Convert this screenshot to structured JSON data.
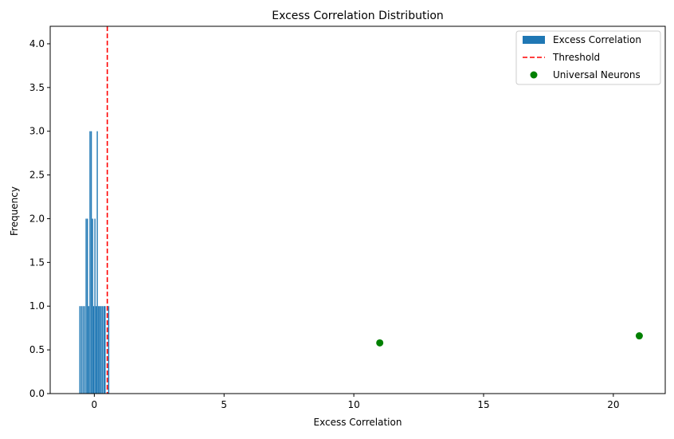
{
  "chart_data": {
    "type": "bar",
    "title": "Excess Correlation Distribution",
    "xlabel": "Excess Correlation",
    "ylabel": "Frequency",
    "xlim": [
      -1.7,
      22.0
    ],
    "ylim": [
      0,
      4.2
    ],
    "xticks": [
      0,
      5,
      10,
      15,
      20
    ],
    "yticks": [
      0.0,
      0.5,
      1.0,
      1.5,
      2.0,
      2.5,
      3.0,
      3.5,
      4.0
    ],
    "grid": false,
    "legend_position": "top-right",
    "series": [
      {
        "name": "Excess Correlation",
        "kind": "bar",
        "color": "#1f77b4",
        "bars": [
          {
            "x": -0.56,
            "height": 1
          },
          {
            "x": -0.5,
            "height": 1
          },
          {
            "x": -0.44,
            "height": 1
          },
          {
            "x": -0.38,
            "height": 1
          },
          {
            "x": -0.32,
            "height": 2
          },
          {
            "x": -0.27,
            "height": 2
          },
          {
            "x": -0.22,
            "height": 1
          },
          {
            "x": -0.17,
            "height": 3
          },
          {
            "x": -0.12,
            "height": 3
          },
          {
            "x": -0.07,
            "height": 2
          },
          {
            "x": -0.03,
            "height": 1
          },
          {
            "x": 0.02,
            "height": 2
          },
          {
            "x": 0.07,
            "height": 1
          },
          {
            "x": 0.11,
            "height": 3
          },
          {
            "x": 0.16,
            "height": 1
          },
          {
            "x": 0.21,
            "height": 1
          },
          {
            "x": 0.26,
            "height": 1
          },
          {
            "x": 0.31,
            "height": 1
          },
          {
            "x": 0.37,
            "height": 1
          },
          {
            "x": 0.41,
            "height": 1
          },
          {
            "x": 0.55,
            "height": 1
          }
        ],
        "bar_width": 0.035
      },
      {
        "name": "Threshold",
        "kind": "vline",
        "color": "#ff0000",
        "x": 0.5
      },
      {
        "name": "Universal Neurons",
        "kind": "scatter",
        "color": "#008000",
        "points": [
          {
            "x": 11.0,
            "y": 0.58
          },
          {
            "x": 21.0,
            "y": 0.66
          }
        ]
      }
    ]
  }
}
